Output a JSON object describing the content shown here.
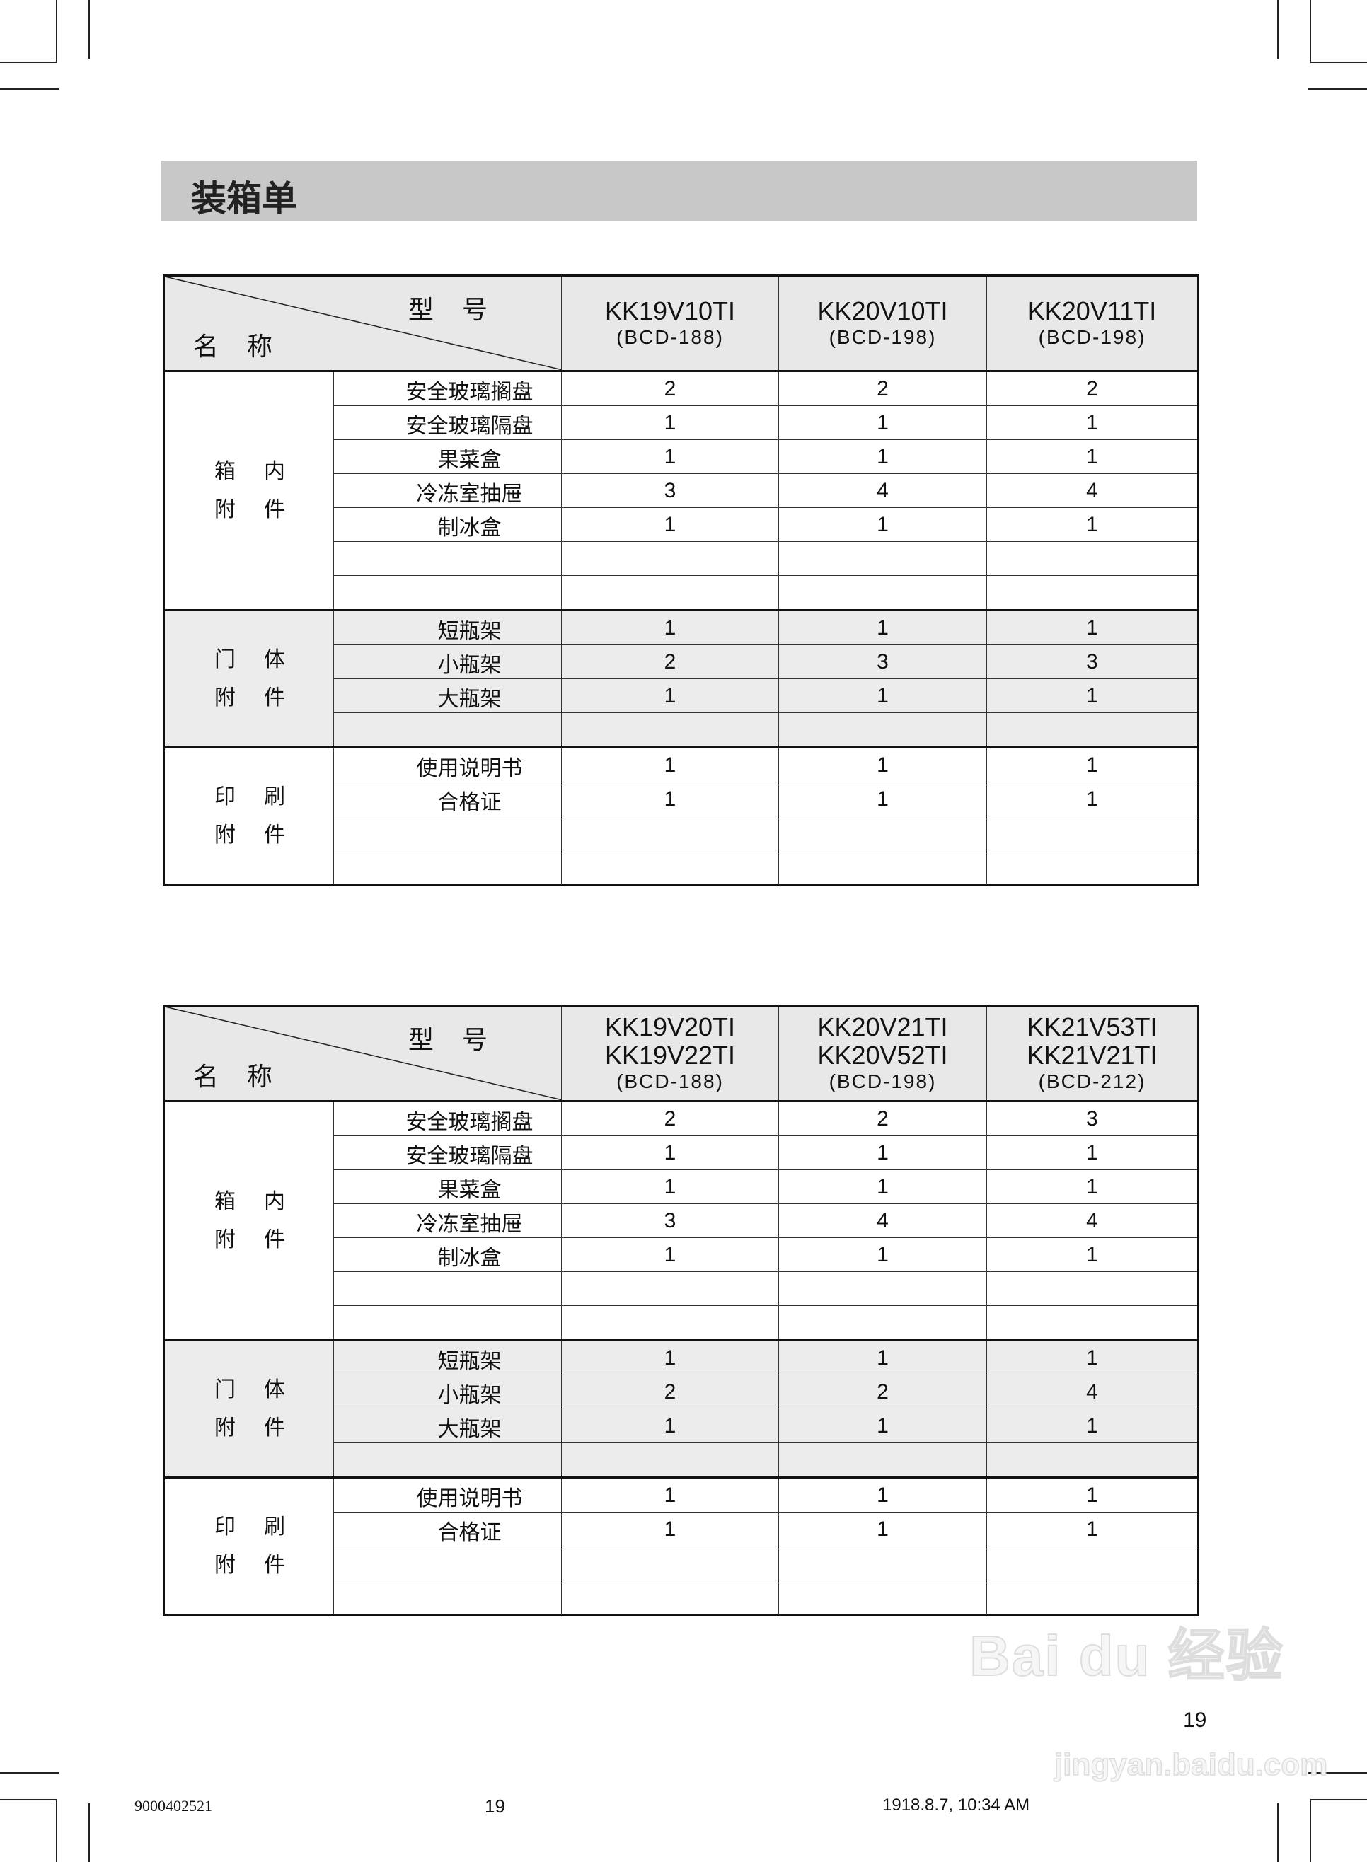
{
  "title": "装箱单",
  "tables": [
    {
      "header": {
        "model_label": "型号",
        "name_label": "名称"
      },
      "models": [
        {
          "lines": [
            "KK19V10TI"
          ],
          "bcd": "(BCD-188)"
        },
        {
          "lines": [
            "KK20V10TI"
          ],
          "bcd": "(BCD-198)"
        },
        {
          "lines": [
            "KK20V11TI"
          ],
          "bcd": "(BCD-198)"
        }
      ],
      "sections": [
        {
          "label": [
            "箱内",
            "附件"
          ],
          "gray": false,
          "rows": 7,
          "items": [
            {
              "name": "安全玻璃搁盘",
              "values": [
                "2",
                "2",
                "2"
              ]
            },
            {
              "name": "安全玻璃隔盘",
              "values": [
                "1",
                "1",
                "1"
              ]
            },
            {
              "name": "果菜盒",
              "values": [
                "1",
                "1",
                "1"
              ]
            },
            {
              "name": "冷冻室抽屉",
              "values": [
                "3",
                "4",
                "4"
              ]
            },
            {
              "name": "制冰盒",
              "values": [
                "1",
                "1",
                "1"
              ]
            }
          ]
        },
        {
          "label": [
            "门体",
            "附件"
          ],
          "gray": true,
          "rows": 4,
          "items": [
            {
              "name": "短瓶架",
              "values": [
                "1",
                "1",
                "1"
              ]
            },
            {
              "name": "小瓶架",
              "values": [
                "2",
                "3",
                "3"
              ]
            },
            {
              "name": "大瓶架",
              "values": [
                "1",
                "1",
                "1"
              ]
            }
          ]
        },
        {
          "label": [
            "印刷",
            "附件"
          ],
          "gray": false,
          "rows": 4,
          "items": [
            {
              "name": "使用说明书",
              "values": [
                "1",
                "1",
                "1"
              ]
            },
            {
              "name": "合格证",
              "values": [
                "1",
                "1",
                "1"
              ]
            }
          ]
        }
      ]
    },
    {
      "header": {
        "model_label": "型号",
        "name_label": "名称"
      },
      "models": [
        {
          "lines": [
            "KK19V20TI",
            "KK19V22TI"
          ],
          "bcd": "(BCD-188)"
        },
        {
          "lines": [
            "KK20V21TI",
            "KK20V52TI"
          ],
          "bcd": "(BCD-198)"
        },
        {
          "lines": [
            "KK21V53TI",
            "KK21V21TI"
          ],
          "bcd": "(BCD-212)"
        }
      ],
      "sections": [
        {
          "label": [
            "箱内",
            "附件"
          ],
          "gray": false,
          "rows": 7,
          "items": [
            {
              "name": "安全玻璃搁盘",
              "values": [
                "2",
                "2",
                "3"
              ]
            },
            {
              "name": "安全玻璃隔盘",
              "values": [
                "1",
                "1",
                "1"
              ]
            },
            {
              "name": "果菜盒",
              "values": [
                "1",
                "1",
                "1"
              ]
            },
            {
              "name": "冷冻室抽屉",
              "values": [
                "3",
                "4",
                "4"
              ]
            },
            {
              "name": "制冰盒",
              "values": [
                "1",
                "1",
                "1"
              ]
            }
          ]
        },
        {
          "label": [
            "门体",
            "附件"
          ],
          "gray": true,
          "rows": 4,
          "items": [
            {
              "name": "短瓶架",
              "values": [
                "1",
                "1",
                "1"
              ]
            },
            {
              "name": "小瓶架",
              "values": [
                "2",
                "2",
                "4"
              ]
            },
            {
              "name": "大瓶架",
              "values": [
                "1",
                "1",
                "1"
              ]
            }
          ]
        },
        {
          "label": [
            "印刷",
            "附件"
          ],
          "gray": false,
          "rows": 4,
          "items": [
            {
              "name": "使用说明书",
              "values": [
                "1",
                "1",
                "1"
              ]
            },
            {
              "name": "合格证",
              "values": [
                "1",
                "1",
                "1"
              ]
            }
          ]
        }
      ]
    }
  ],
  "page_number": "19",
  "footer": {
    "code": "9000402521",
    "page": "19",
    "timestamp": "1918.8.7, 10:34 AM"
  },
  "watermark": {
    "brand": "Bai du 经验",
    "url": "jingyan.baidu.com"
  }
}
